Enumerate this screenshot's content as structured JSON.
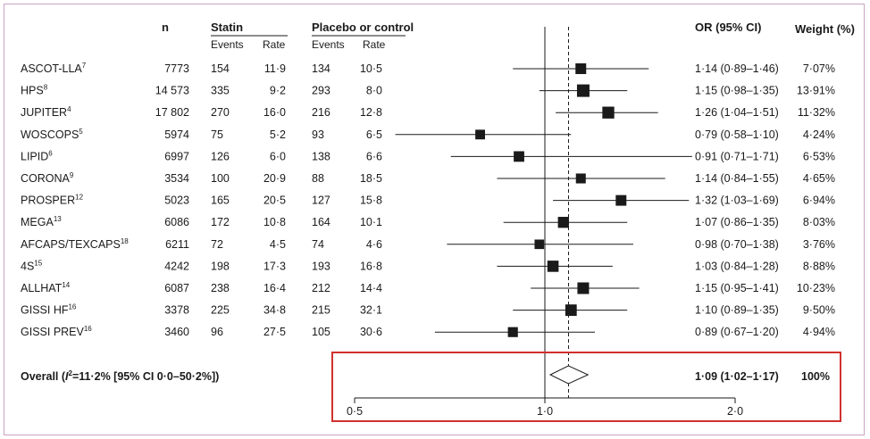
{
  "headers": {
    "n": "n",
    "statin": "Statin",
    "placebo": "Placebo or control",
    "events": "Events",
    "rate": "Rate",
    "or_ci": "OR (95% CI)",
    "weight": "Weight (%)"
  },
  "overall": {
    "label_prefix": "Overall (",
    "label_i": "I",
    "label_sup": "2",
    "label_suffix": "=11·2% [95% CI 0·0–50·2%])",
    "or_ci": "1·09 (1·02–1·17)",
    "weight": "100%"
  },
  "chart_data": {
    "type": "forest",
    "x_scale": "log",
    "xlim": [
      0.5,
      2.0
    ],
    "x_ticks": [
      0.5,
      1.0,
      2.0
    ],
    "x_tick_labels": [
      "0·5",
      "1·0",
      "2·0"
    ],
    "reference_line": 1.0,
    "overall_line": 1.09,
    "studies": [
      {
        "name": "ASCOT-LLA",
        "ref": "7",
        "n": "7773",
        "s_events": "154",
        "s_rate": "11·9",
        "p_events": "134",
        "p_rate": "10·5",
        "or": 1.14,
        "lo": 0.89,
        "hi": 1.46,
        "or_ci": "1·14 (0·89–1·46)",
        "weight": "7·07%",
        "w": 7.07
      },
      {
        "name": "HPS",
        "ref": "8",
        "n": "14 573",
        "s_events": "335",
        "s_rate": "9·2",
        "p_events": "293",
        "p_rate": "8·0",
        "or": 1.15,
        "lo": 0.98,
        "hi": 1.35,
        "or_ci": "1·15 (0·98–1·35)",
        "weight": "13·91%",
        "w": 13.91
      },
      {
        "name": "JUPITER",
        "ref": "4",
        "n": "17 802",
        "s_events": "270",
        "s_rate": "16·0",
        "p_events": "216",
        "p_rate": "12·8",
        "or": 1.26,
        "lo": 1.04,
        "hi": 1.51,
        "or_ci": "1·26 (1·04–1·51)",
        "weight": "11·32%",
        "w": 11.32
      },
      {
        "name": "WOSCOPS",
        "ref": "5",
        "n": "5974",
        "s_events": "75",
        "s_rate": "5·2",
        "p_events": "93",
        "p_rate": "6·5",
        "or": 0.79,
        "lo": 0.58,
        "hi": 1.1,
        "or_ci": "0·79 (0·58–1·10)",
        "weight": "4·24%",
        "w": 4.24
      },
      {
        "name": "LIPID",
        "ref": "6",
        "n": "6997",
        "s_events": "126",
        "s_rate": "6·0",
        "p_events": "138",
        "p_rate": "6·6",
        "or": 0.91,
        "lo": 0.71,
        "hi": 1.71,
        "or_ci": "0·91 (0·71–1·71)",
        "weight": "6·53%",
        "w": 6.53
      },
      {
        "name": "CORONA",
        "ref": "9",
        "n": "3534",
        "s_events": "100",
        "s_rate": "20·9",
        "p_events": "88",
        "p_rate": "18·5",
        "or": 1.14,
        "lo": 0.84,
        "hi": 1.55,
        "or_ci": "1·14 (0·84–1·55)",
        "weight": "4·65%",
        "w": 4.65
      },
      {
        "name": "PROSPER",
        "ref": "12",
        "n": "5023",
        "s_events": "165",
        "s_rate": "20·5",
        "p_events": "127",
        "p_rate": "15·8",
        "or": 1.32,
        "lo": 1.03,
        "hi": 1.69,
        "or_ci": "1·32 (1·03–1·69)",
        "weight": "6·94%",
        "w": 6.94
      },
      {
        "name": "MEGA",
        "ref": "13",
        "n": "6086",
        "s_events": "172",
        "s_rate": "10·8",
        "p_events": "164",
        "p_rate": "10·1",
        "or": 1.07,
        "lo": 0.86,
        "hi": 1.35,
        "or_ci": "1·07 (0·86–1·35)",
        "weight": "8·03%",
        "w": 8.03
      },
      {
        "name": "AFCAPS/TEXCAPS",
        "ref": "18",
        "n": "6211",
        "s_events": "72",
        "s_rate": "4·5",
        "p_events": "74",
        "p_rate": "4·6",
        "or": 0.98,
        "lo": 0.7,
        "hi": 1.38,
        "or_ci": "0·98 (0·70–1·38)",
        "weight": "3·76%",
        "w": 3.76
      },
      {
        "name": "4S",
        "ref": "15",
        "n": "4242",
        "s_events": "198",
        "s_rate": "17·3",
        "p_events": "193",
        "p_rate": "16·8",
        "or": 1.03,
        "lo": 0.84,
        "hi": 1.28,
        "or_ci": "1·03 (0·84–1·28)",
        "weight": "8·88%",
        "w": 8.88
      },
      {
        "name": "ALLHAT",
        "ref": "14",
        "n": "6087",
        "s_events": "238",
        "s_rate": "16·4",
        "p_events": "212",
        "p_rate": "14·4",
        "or": 1.15,
        "lo": 0.95,
        "hi": 1.41,
        "or_ci": "1·15 (0·95–1·41)",
        "weight": "10·23%",
        "w": 10.23
      },
      {
        "name": "GISSI HF",
        "ref": "16",
        "n": "3378",
        "s_events": "225",
        "s_rate": "34·8",
        "p_events": "215",
        "p_rate": "32·1",
        "or": 1.1,
        "lo": 0.89,
        "hi": 1.35,
        "or_ci": "1·10 (0·89–1·35)",
        "weight": "9·50%",
        "w": 9.5
      },
      {
        "name": "GISSI PREV",
        "ref": "16",
        "n": "3460",
        "s_events": "96",
        "s_rate": "27·5",
        "p_events": "105",
        "p_rate": "30·6",
        "or": 0.89,
        "lo": 0.67,
        "hi": 1.2,
        "or_ci": "0·89 (0·67–1·20)",
        "weight": "4·94%",
        "w": 4.94
      }
    ],
    "overall_estimate": {
      "or": 1.09,
      "lo": 1.02,
      "hi": 1.17
    },
    "colors": {
      "marker": "#1a1a1a",
      "highlight_box": "#d0312d",
      "frame": "#c9a3c2"
    }
  }
}
